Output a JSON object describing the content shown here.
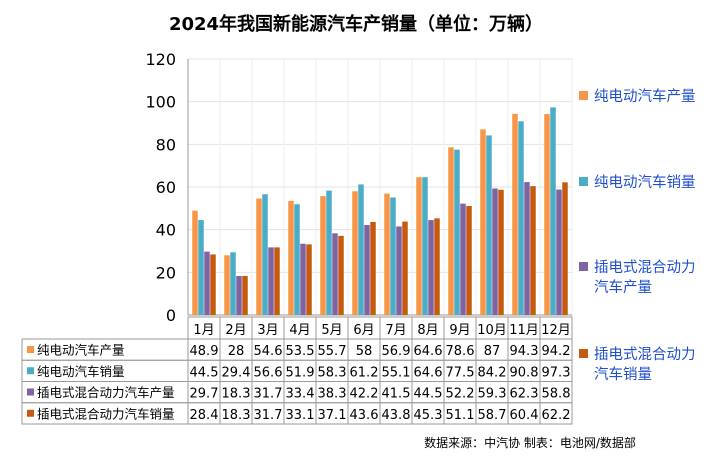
{
  "chart_data": {
    "type": "bar",
    "title": "2024年我国新能源汽车产销量（单位：万辆）",
    "categories": [
      "1月",
      "2月",
      "3月",
      "4月",
      "5月",
      "6月",
      "7月",
      "8月",
      "9月",
      "10月",
      "11月",
      "12月"
    ],
    "ylim": [
      0,
      120
    ],
    "yticks": [
      0,
      20,
      40,
      60,
      80,
      100,
      120
    ],
    "grid": true,
    "legend_position": "right",
    "series": [
      {
        "name": "纯电动汽车产量",
        "legend_lines": [
          "纯电动汽车产量"
        ],
        "color": "#F79646",
        "values": [
          48.9,
          28,
          54.6,
          53.5,
          55.7,
          58,
          56.9,
          64.6,
          78.6,
          87,
          94.3,
          94.2
        ]
      },
      {
        "name": "纯电动汽车销量",
        "legend_lines": [
          "纯电动汽车销量"
        ],
        "color": "#4BACC6",
        "values": [
          44.5,
          29.4,
          56.6,
          51.9,
          58.3,
          61.2,
          55.1,
          64.6,
          77.5,
          84.2,
          90.8,
          97.3
        ]
      },
      {
        "name": "插电式混合动力汽车产量",
        "legend_lines": [
          "插电式混合动力",
          "汽车产量"
        ],
        "color": "#8064A2",
        "values": [
          29.7,
          18.3,
          31.7,
          33.4,
          38.3,
          42.2,
          41.5,
          44.5,
          52.2,
          59.3,
          62.3,
          58.8
        ]
      },
      {
        "name": "插电式混合动力汽车销量",
        "legend_lines": [
          "插电式混合动力",
          "汽车销量"
        ],
        "color": "#C55A11",
        "values": [
          28.4,
          18.3,
          31.7,
          33.1,
          37.1,
          43.6,
          43.8,
          45.3,
          51.1,
          58.7,
          60.4,
          62.2
        ]
      }
    ],
    "footer": "数据来源：中汽协   制表：电池网/数据部"
  }
}
